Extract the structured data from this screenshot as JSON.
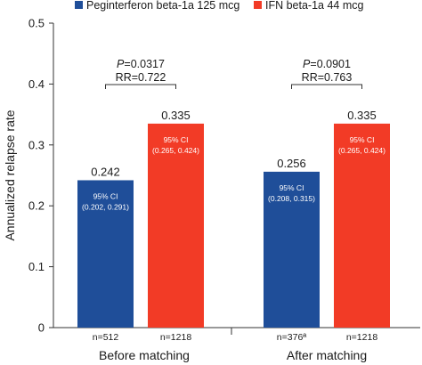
{
  "chart_data": {
    "type": "bar",
    "title": "",
    "xlabel": "",
    "ylabel": "Annualized relapse rate",
    "ylim": [
      0,
      0.5
    ],
    "yticks": [
      "0",
      "0.1",
      "0.2",
      "0.3",
      "0.4",
      "0.5"
    ],
    "grid": false,
    "legend_position": "top",
    "categories": [
      "Before matching",
      "After matching"
    ],
    "series": [
      {
        "name": "Peginterferon beta-1a 125 mcg",
        "color": "#1f4e99",
        "values": [
          0.242,
          0.256
        ],
        "value_labels": [
          "0.242",
          "0.256"
        ],
        "ci_title": [
          "95% CI",
          "95% CI"
        ],
        "ci_range": [
          "(0.202, 0.291)",
          "(0.208, 0.315)"
        ],
        "n_labels": [
          "n=512",
          "n=376ª"
        ]
      },
      {
        "name": "IFN beta-1a 44 mcg",
        "color": "#f23b26",
        "values": [
          0.335,
          0.335
        ],
        "value_labels": [
          "0.335",
          "0.335"
        ],
        "ci_title": [
          "95% CI",
          "95% CI"
        ],
        "ci_range": [
          "(0.265, 0.424)",
          "(0.265, 0.424)"
        ],
        "n_labels": [
          "n=1218",
          "n=1218"
        ]
      }
    ],
    "comparisons": [
      {
        "p_prefix": "P",
        "p_value": "=0.0317",
        "rr": "RR=0.722"
      },
      {
        "p_prefix": "P",
        "p_value": "=0.0901",
        "rr": "RR=0.763"
      }
    ]
  }
}
